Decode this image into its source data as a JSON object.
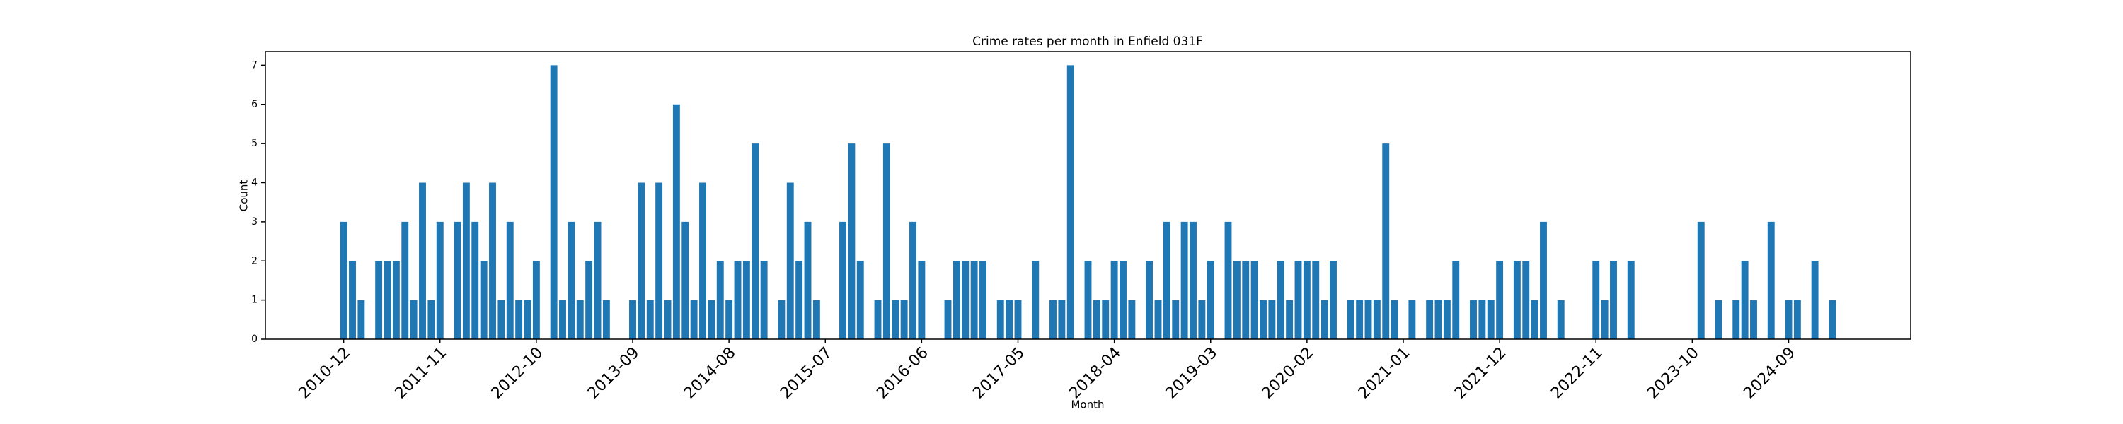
{
  "chart_data": {
    "type": "bar",
    "title": "Crime rates per month in Enfield 031F",
    "x_label": "Month",
    "y_label": "Count",
    "color": "#1f77b4",
    "categories": [
      "2010-12",
      null,
      null,
      null,
      null,
      null,
      null,
      null,
      null,
      null,
      null,
      "2011-11",
      null,
      null,
      null,
      null,
      null,
      null,
      null,
      null,
      null,
      null,
      "2012-10",
      null,
      null,
      null,
      null,
      null,
      null,
      null,
      null,
      null,
      null,
      "2013-09",
      null,
      null,
      null,
      null,
      null,
      null,
      null,
      null,
      null,
      null,
      "2014-08",
      null,
      null,
      null,
      null,
      null,
      null,
      null,
      null,
      null,
      null,
      "2015-07",
      null,
      null,
      null,
      null,
      null,
      null,
      null,
      null,
      null,
      null,
      "2016-06",
      null,
      null,
      null,
      null,
      null,
      null,
      null,
      null,
      null,
      null,
      "2017-05",
      null,
      null,
      null,
      null,
      null,
      null,
      null,
      null,
      null,
      null,
      "2018-04",
      null,
      null,
      null,
      null,
      null,
      null,
      null,
      null,
      null,
      null,
      "2019-03",
      null,
      null,
      null,
      null,
      null,
      null,
      null,
      null,
      null,
      null,
      "2020-02",
      null,
      null,
      null,
      null,
      null,
      null,
      null,
      null,
      null,
      null,
      "2021-01",
      null,
      null,
      null,
      null,
      null,
      null,
      null,
      null,
      null,
      null,
      "2021-12",
      null,
      null,
      null,
      null,
      null,
      null,
      null,
      null,
      null,
      null,
      "2022-11",
      null,
      null,
      null,
      null,
      null,
      null,
      null,
      null,
      null,
      null,
      "2023-10",
      null,
      null,
      null,
      null,
      null,
      null,
      null,
      null,
      null,
      null,
      "2024-09",
      null,
      null,
      null,
      null,
      null
    ],
    "values": [
      3,
      2,
      1,
      0,
      2,
      2,
      2,
      3,
      1,
      4,
      1,
      3,
      0,
      3,
      4,
      3,
      2,
      4,
      1,
      3,
      1,
      1,
      2,
      0,
      7,
      1,
      3,
      1,
      2,
      3,
      1,
      0,
      0,
      1,
      4,
      1,
      4,
      1,
      6,
      3,
      1,
      4,
      1,
      2,
      1,
      2,
      2,
      5,
      2,
      0,
      1,
      4,
      2,
      3,
      1,
      0,
      0,
      3,
      5,
      2,
      0,
      1,
      5,
      1,
      1,
      3,
      2,
      0,
      0,
      1,
      2,
      2,
      2,
      2,
      0,
      1,
      1,
      1,
      0,
      2,
      0,
      1,
      1,
      7,
      0,
      2,
      1,
      1,
      2,
      2,
      1,
      0,
      2,
      1,
      3,
      1,
      3,
      3,
      1,
      2,
      0,
      3,
      2,
      2,
      2,
      1,
      1,
      2,
      1,
      2,
      2,
      2,
      1,
      2,
      0,
      1,
      1,
      1,
      1,
      5,
      1,
      0,
      1,
      0,
      1,
      1,
      1,
      2,
      0,
      1,
      1,
      1,
      2,
      0,
      2,
      2,
      1,
      3,
      0,
      1,
      0,
      0,
      0,
      2,
      1,
      2,
      0,
      2,
      0,
      0,
      0,
      0,
      0,
      0,
      0,
      3,
      0,
      1,
      0,
      1,
      2,
      1,
      0,
      3,
      0,
      1,
      1,
      0,
      2,
      0,
      1
    ],
    "ylim": [
      0,
      7.35
    ],
    "yticks": [
      0,
      1,
      2,
      3,
      4,
      5,
      6,
      7
    ]
  }
}
